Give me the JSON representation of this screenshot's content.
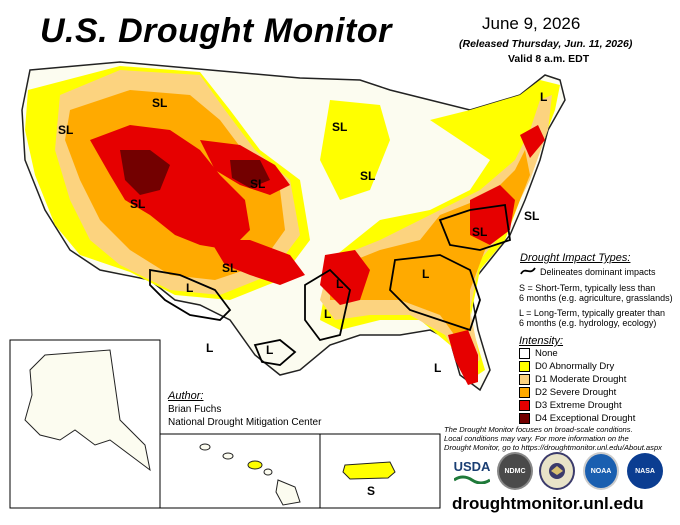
{
  "header": {
    "title": "U.S. Drought Monitor",
    "date": "June 9, 2026",
    "released": "(Released Thursday, Jun. 11, 2026)",
    "valid": "Valid 8 a.m. EDT"
  },
  "map_labels": [
    "SL",
    "SL",
    "SL",
    "SL",
    "SL",
    "SL",
    "SL",
    "SL",
    "SL",
    "L",
    "L",
    "L",
    "L",
    "L",
    "L",
    "L",
    "L",
    "S"
  ],
  "impact": {
    "title": "Drought Impact Types:",
    "line_symbol": "Delineates dominant impacts",
    "s_text_1": "S = Short-Term, typically less than",
    "s_text_2": "6 months (e.g. agriculture, grasslands)",
    "l_text_1": "L = Long-Term, typically greater than",
    "l_text_2": "6 months (e.g. hydrology, ecology)"
  },
  "intensity": {
    "title": "Intensity:",
    "items": [
      {
        "label": "None",
        "color": "#ffffff"
      },
      {
        "label": "D0 Abnormally Dry",
        "color": "#ffff00"
      },
      {
        "label": "D1 Moderate Drought",
        "color": "#fcd37f"
      },
      {
        "label": "D2 Severe Drought",
        "color": "#ffaa00"
      },
      {
        "label": "D3 Extreme Drought",
        "color": "#e60000"
      },
      {
        "label": "D4 Exceptional Drought",
        "color": "#730000"
      }
    ]
  },
  "author": {
    "label": "Author:",
    "name": "Brian Fuchs",
    "org": "National Drought Mitigation Center"
  },
  "note": {
    "line1": "The Drought Monitor focuses on broad-scale conditions.",
    "line2": "Local conditions may vary. For more information on the",
    "line3": "Drought Monitor, go to https://droughtmonitor.unl.edu/About.aspx"
  },
  "logos": {
    "usda": "USDA",
    "ndmc": "NDMC",
    "noaa": "NOAA",
    "nasa": "NASA"
  },
  "footer": {
    "url": "droughtmonitor.unl.edu"
  }
}
